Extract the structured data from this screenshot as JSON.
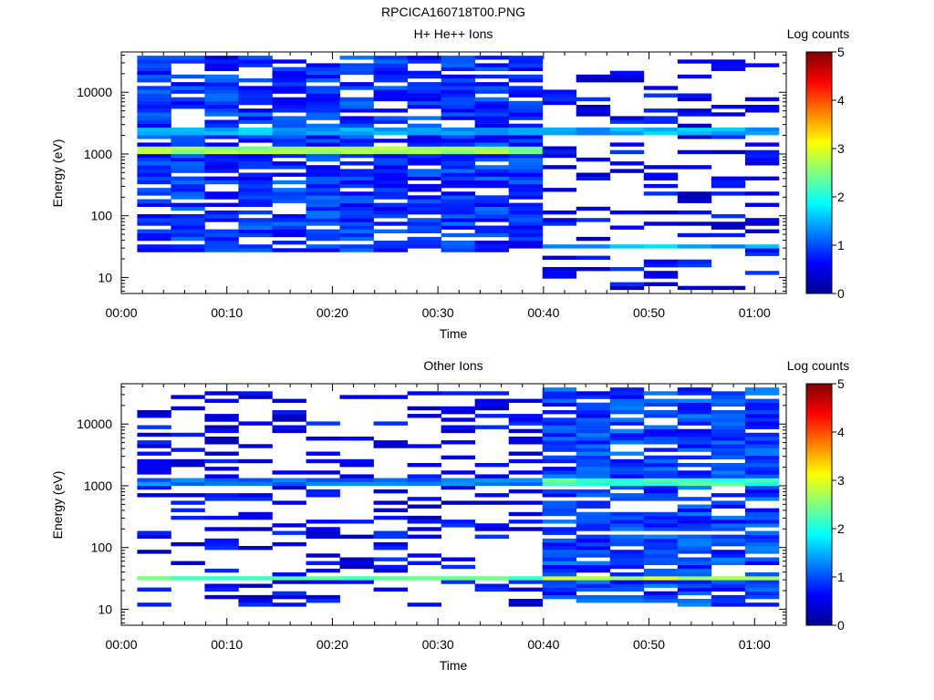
{
  "figure": {
    "filename": "RPCICA160718T00.PNG"
  },
  "chart_data": [
    {
      "type": "heatmap",
      "title": "H+ He++ Ions",
      "xlabel": "Time",
      "ylabel": "Energy (eV)",
      "x_ticks": [
        "00:00",
        "00:10",
        "00:20",
        "00:30",
        "00:40",
        "00:50",
        "01:00"
      ],
      "x_range_minutes": [
        0,
        63
      ],
      "y_scale": "log",
      "y_ticks": [
        "10",
        "100",
        "1000",
        "10000"
      ],
      "y_range": [
        5.5,
        45000
      ],
      "colorbar": {
        "label": "Log counts",
        "range": [
          0,
          5
        ],
        "ticks": [
          "0",
          "1",
          "2",
          "3",
          "4",
          "5"
        ],
        "colormap": "jet"
      },
      "time_bin_edges_minutes": [
        1.5,
        4.7,
        7.9,
        11.1,
        14.3,
        17.5,
        20.7,
        23.9,
        27.1,
        30.3,
        33.5,
        36.7,
        39.9,
        43.1,
        46.3,
        49.5,
        52.7,
        55.9,
        59.1,
        62.3
      ],
      "features": [
        {
          "label": "line",
          "energy_eV": 1200,
          "time_minutes": [
            1.5,
            39.9
          ],
          "log_counts": 2.6
        },
        {
          "label": "line",
          "energy_eV": 2500,
          "time_minutes": [
            1.5,
            62.3
          ],
          "log_counts": 1.5
        },
        {
          "label": "line",
          "energy_eV": 32,
          "time_minutes": [
            39.9,
            62.3
          ],
          "log_counts": 1.5
        },
        {
          "label": "bulk",
          "energy_range_eV": [
            25,
            40000
          ],
          "time_minutes": [
            1.5,
            39.9
          ],
          "log_counts": 0.5
        },
        {
          "label": "sparse",
          "energy_range_eV": [
            6,
            35000
          ],
          "time_minutes": [
            39.9,
            62.3
          ],
          "log_counts": 0.2
        }
      ]
    },
    {
      "type": "heatmap",
      "title": "Other Ions",
      "xlabel": "Time",
      "ylabel": "Energy (eV)",
      "x_ticks": [
        "00:00",
        "00:10",
        "00:20",
        "00:30",
        "00:40",
        "00:50",
        "01:00"
      ],
      "x_range_minutes": [
        0,
        63
      ],
      "y_scale": "log",
      "y_ticks": [
        "10",
        "100",
        "1000",
        "10000"
      ],
      "y_range": [
        5.5,
        45000
      ],
      "colorbar": {
        "label": "Log counts",
        "range": [
          0,
          5
        ],
        "ticks": [
          "0",
          "1",
          "2",
          "3",
          "4",
          "5"
        ],
        "colormap": "jet"
      },
      "time_bin_edges_minutes": [
        1.5,
        4.7,
        7.9,
        11.1,
        14.3,
        17.5,
        20.7,
        23.9,
        27.1,
        30.3,
        33.5,
        36.7,
        39.9,
        43.1,
        46.3,
        49.5,
        52.7,
        55.9,
        59.1,
        62.3
      ],
      "features": [
        {
          "label": "line",
          "energy_eV": 32,
          "time_minutes": [
            1.5,
            62.3
          ],
          "log_counts": 2.3
        },
        {
          "label": "line",
          "energy_eV": 1200,
          "time_minutes": [
            1.5,
            39.9
          ],
          "log_counts": 1.2
        },
        {
          "label": "line",
          "energy_eV": 1200,
          "time_minutes": [
            39.9,
            62.3
          ],
          "log_counts": 2.2
        },
        {
          "label": "line",
          "energy_eV": 32,
          "time_minutes": [
            39.9,
            62.3
          ],
          "log_counts": 2.8
        },
        {
          "label": "bulk",
          "energy_range_eV": [
            11,
            40000
          ],
          "time_minutes": [
            39.9,
            62.3
          ],
          "log_counts": 0.6
        },
        {
          "label": "sparse",
          "energy_range_eV": [
            11,
            35000
          ],
          "time_minutes": [
            1.5,
            39.9
          ],
          "log_counts": 0.2
        }
      ]
    }
  ]
}
